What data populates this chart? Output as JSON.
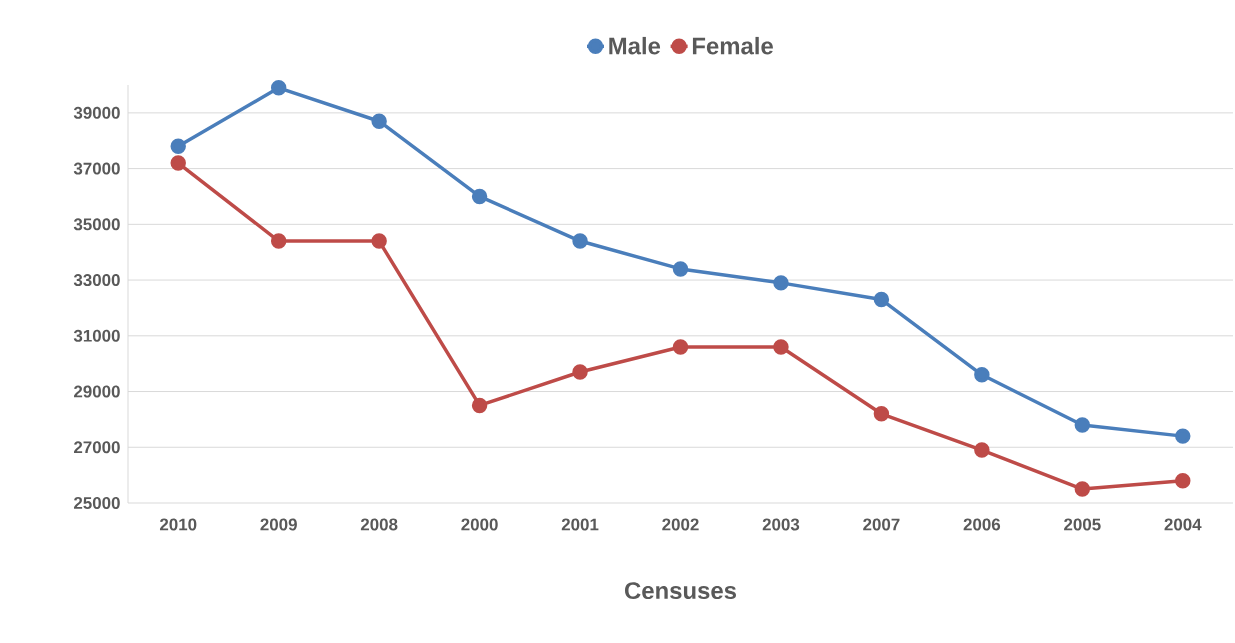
{
  "chart_data": {
    "type": "line",
    "xlabel": "Censuses",
    "categories": [
      "2010",
      "2009",
      "2008",
      "2000",
      "2001",
      "2002",
      "2003",
      "2007",
      "2006",
      "2005",
      "2004"
    ],
    "series": [
      {
        "name": "Male",
        "color": "#4a7ebb",
        "values": [
          37800,
          39900,
          38700,
          36000,
          34400,
          33400,
          32900,
          32300,
          29600,
          27800,
          27400
        ]
      },
      {
        "name": "Female",
        "color": "#be4b48",
        "values": [
          37200,
          34400,
          34400,
          28500,
          29700,
          30600,
          30600,
          28200,
          26900,
          25500,
          25800
        ]
      }
    ],
    "ylim": [
      25000,
      40000
    ],
    "yticks": [
      25000,
      27000,
      29000,
      31000,
      33000,
      35000,
      37000,
      39000
    ],
    "grid": "y",
    "legend": "top",
    "marker": "circle",
    "line_style": "solid"
  }
}
